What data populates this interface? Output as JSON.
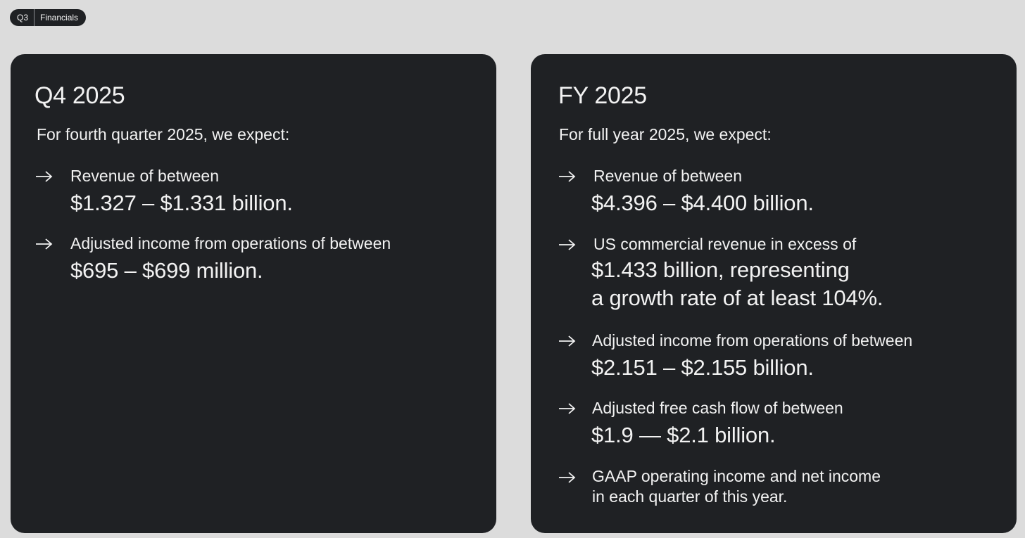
{
  "tag": {
    "quarter": "Q3",
    "section": "Financials"
  },
  "q4": {
    "title": "Q4 2025",
    "intro": "For fourth quarter 2025, we expect:",
    "items": [
      {
        "label": "Revenue of between",
        "value": "$1.327 – $1.331 billion."
      },
      {
        "label": "Adjusted income from operations of between",
        "value": "$695 – $699 million."
      }
    ]
  },
  "fy": {
    "title": "FY 2025",
    "intro": "For full year 2025, we expect:",
    "items": [
      {
        "label": "Revenue of between",
        "value": "$4.396 – $4.400 billion."
      },
      {
        "label": "US commercial revenue in excess of",
        "value_lines": [
          "$1.433 billion, representing",
          "a growth rate of at least 104%."
        ]
      },
      {
        "label": "Adjusted income from operations of between",
        "value": "$2.151 – $2.155 billion."
      },
      {
        "label": "Adjusted free cash flow of between",
        "value": "$1.9 — $2.1 billion."
      },
      {
        "note_lines": [
          "GAAP operating income and net income",
          "in each quarter of this year."
        ]
      }
    ]
  },
  "icons": {
    "bullet": "arrow-right-icon"
  },
  "colors": {
    "background": "#dcdcdc",
    "card": "#1f2124",
    "text": "#f2f2f2"
  }
}
